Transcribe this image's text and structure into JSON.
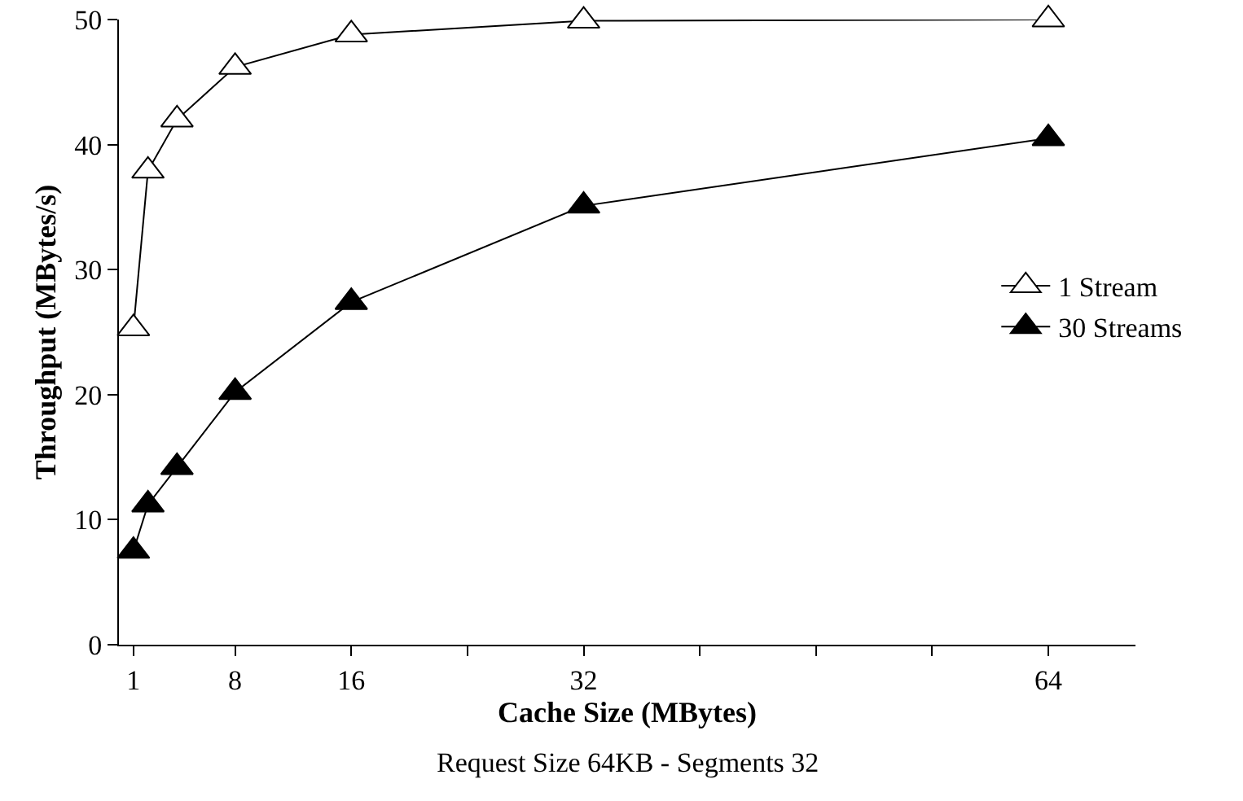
{
  "chart_data": {
    "type": "line",
    "xlabel": "Cache Size (MBytes)",
    "ylabel": "Throughput (MBytes/s)",
    "annotations": [
      "Request Size 64KB - Segments 32"
    ],
    "x": [
      1,
      2,
      4,
      8,
      16,
      32,
      64
    ],
    "series": [
      {
        "name": "1 Stream",
        "color": "#ffffff",
        "values": [
          25.3,
          37.9,
          42,
          46.2,
          48.8,
          49.9,
          50
        ]
      },
      {
        "name": "30 Streams",
        "color": "#000000",
        "values": [
          7.5,
          11.2,
          14.2,
          20.2,
          27.4,
          35.1,
          40.5
        ]
      }
    ],
    "xlim": [
      0,
      70
    ],
    "xticks": [
      1,
      8,
      16,
      {
        "value": 24,
        "label": null
      },
      32,
      {
        "value": 40,
        "label": null
      },
      {
        "value": 48,
        "label": null
      },
      {
        "value": 56,
        "label": null
      },
      64
    ],
    "ylim": [
      0,
      50
    ],
    "yticks": [
      0,
      10,
      20,
      30,
      40,
      50
    ],
    "grid": false,
    "legend": "right",
    "marker": "triangle",
    "line_style": "solid"
  }
}
